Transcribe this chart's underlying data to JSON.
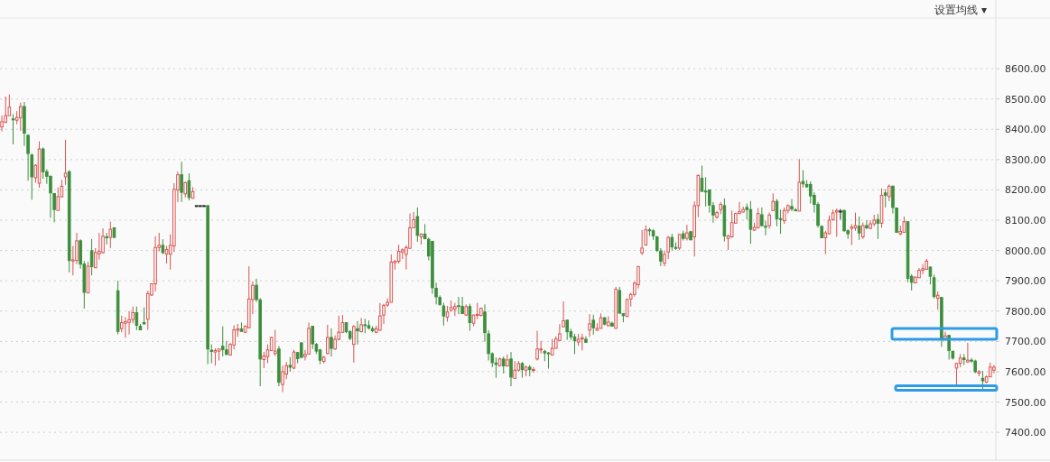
{
  "chart_data": {
    "type": "candlestick",
    "annotations": [
      "设置均线 ▾"
    ],
    "ylim": [
      7308,
      8767
    ],
    "yticks": [
      {
        "value": 7400,
        "label": "7400.00"
      },
      {
        "value": 7500,
        "label": "7500.00"
      },
      {
        "value": 7600,
        "label": "7600.00"
      },
      {
        "value": 7700,
        "label": "7700.00"
      },
      {
        "value": 7800,
        "label": "7800.00"
      },
      {
        "value": 7900,
        "label": "7900.00"
      },
      {
        "value": 8000,
        "label": "8000.00"
      },
      {
        "value": 8100,
        "label": "8100.00"
      },
      {
        "value": 8200,
        "label": "8200.00"
      },
      {
        "value": 8300,
        "label": "8300.00"
      },
      {
        "value": 8400,
        "label": "8400.00"
      },
      {
        "value": 8500,
        "label": "8500.00"
      },
      {
        "value": 8600,
        "label": "8600.00"
      }
    ],
    "grid": "y",
    "categories": [
      null,
      null,
      null,
      null,
      null,
      null,
      null,
      null,
      null,
      null,
      null,
      null,
      null,
      null,
      null,
      null,
      null,
      null,
      null,
      null,
      null,
      null,
      null,
      null,
      null,
      null,
      null,
      null,
      null,
      null,
      null,
      null,
      null,
      null,
      null,
      null,
      null,
      null,
      null,
      null,
      null,
      null,
      null,
      null,
      null,
      null,
      null,
      null,
      null,
      null,
      null,
      null,
      null,
      null,
      null,
      null,
      null,
      null,
      null,
      null,
      null,
      null,
      null,
      null,
      null,
      null,
      null,
      null,
      null,
      null,
      null,
      null,
      null,
      null,
      null,
      null,
      null,
      null,
      null,
      null,
      null,
      null,
      null,
      null,
      null,
      null,
      null,
      null,
      null,
      null,
      null,
      null,
      null,
      null,
      null,
      null,
      null,
      null,
      null,
      null,
      null,
      null,
      null,
      null,
      null,
      null,
      null,
      null,
      null,
      null,
      null,
      null,
      null,
      null,
      null,
      null,
      null,
      null,
      null,
      null,
      null,
      null,
      null,
      null,
      null,
      null,
      null,
      null,
      null,
      null,
      null,
      null,
      null,
      null,
      null,
      null,
      null,
      null,
      null,
      null,
      null,
      null,
      null,
      null,
      null,
      null,
      null,
      null,
      null,
      null,
      null,
      null,
      null,
      null,
      null,
      null,
      null,
      null,
      null,
      null,
      null,
      null,
      null,
      null,
      null,
      null,
      null,
      null,
      null,
      null,
      null,
      null,
      null,
      null,
      null,
      null,
      null,
      null,
      null,
      null,
      null,
      null,
      null,
      null,
      null,
      null,
      null,
      null,
      null,
      null,
      null,
      null,
      null,
      null,
      null,
      null,
      null,
      null,
      null,
      null,
      null,
      null,
      null,
      null,
      null,
      null,
      null,
      null,
      null,
      null,
      null,
      null,
      null,
      null,
      null,
      null,
      null,
      null,
      null,
      null,
      null,
      null,
      null,
      null,
      null,
      null,
      null,
      null,
      null,
      null,
      null,
      null,
      null,
      null,
      null,
      null,
      null,
      null,
      null,
      null,
      null,
      null,
      null,
      null,
      null,
      null,
      null,
      null,
      null,
      null,
      null,
      null,
      null,
      null,
      null,
      null,
      null,
      null,
      null,
      null,
      null,
      null,
      null,
      null,
      null,
      null
    ],
    "ohlc": [
      [
        8408,
        8445,
        8393,
        8425
      ],
      [
        8423,
        8508,
        8420,
        8445
      ],
      [
        8445,
        8515,
        8445,
        8473
      ],
      [
        8434,
        8450,
        8350,
        8432
      ],
      [
        8430,
        8460,
        8417,
        8439
      ],
      [
        8438,
        8488,
        8395,
        8475
      ],
      [
        8475,
        8490,
        8345,
        8387
      ],
      [
        8380,
        8383,
        8230,
        8320
      ],
      [
        8315,
        8320,
        8167,
        8243
      ],
      [
        8240,
        8285,
        8223,
        8281
      ],
      [
        8222,
        8360,
        8207,
        8335
      ],
      [
        8335,
        8340,
        8237,
        8260
      ],
      [
        8260,
        8268,
        8220,
        8245
      ],
      [
        8245,
        8247,
        8108,
        8190
      ],
      [
        8188,
        8188,
        8093,
        8135
      ],
      [
        8132,
        8208,
        8132,
        8178
      ],
      [
        8177,
        8233,
        8175,
        8212
      ],
      [
        8243,
        8365,
        8217,
        8255
      ],
      [
        8260,
        8265,
        7928,
        7967
      ],
      [
        7965,
        8015,
        7918,
        7969
      ],
      [
        7967,
        8058,
        7955,
        8032
      ],
      [
        8032,
        8037,
        7940,
        7955
      ],
      [
        7955,
        7965,
        7808,
        7862
      ],
      [
        7860,
        7963,
        7860,
        7948
      ],
      [
        7999,
        8038,
        7918,
        7947
      ],
      [
        7943,
        8008,
        7943,
        7993
      ],
      [
        7989,
        8058,
        7970,
        7997
      ],
      [
        7993,
        8073,
        7990,
        8047
      ],
      [
        8045,
        8058,
        8020,
        8043
      ],
      [
        8043,
        8095,
        8008,
        8070
      ],
      [
        8075,
        8075,
        8043,
        8043
      ],
      [
        7867,
        7900,
        7723,
        7733
      ],
      [
        7742,
        7785,
        7730,
        7762
      ],
      [
        7760,
        7780,
        7712,
        7765
      ],
      [
        7763,
        7800,
        7723,
        7772
      ],
      [
        7772,
        7815,
        7760,
        7795
      ],
      [
        7795,
        7815,
        7737,
        7753
      ],
      [
        7750,
        7758,
        7737,
        7738
      ],
      [
        7762,
        7812,
        7755,
        7758
      ],
      [
        7773,
        7867,
        7738,
        7858
      ],
      [
        7853,
        7890,
        7850,
        7890
      ],
      [
        7890,
        8047,
        7865,
        8010
      ],
      [
        8010,
        8058,
        7997,
        8017
      ],
      [
        8017,
        8037,
        7988,
        7993
      ],
      [
        7988,
        8015,
        7957,
        8003
      ],
      [
        7988,
        8053,
        7937,
        8017
      ],
      [
        8015,
        8222,
        7995,
        8202
      ],
      [
        8200,
        8260,
        8160,
        8250
      ],
      [
        8250,
        8293,
        8160,
        8192
      ],
      [
        8187,
        8227,
        8175,
        8224
      ],
      [
        8230,
        8254,
        8165,
        8175
      ],
      [
        8172,
        8209,
        8172,
        8194
      ],
      [
        8148,
        8148,
        8148,
        8148
      ],
      [
        8148,
        8148,
        8148,
        8148
      ],
      [
        8148,
        8148,
        8148,
        8148
      ],
      [
        8148,
        8148,
        7625,
        7675
      ],
      [
        7671,
        7690,
        7628,
        7667
      ],
      [
        7665,
        7677,
        7620,
        7670
      ],
      [
        7668,
        7675,
        7637,
        7675
      ],
      [
        7684,
        7750,
        7650,
        7673
      ],
      [
        7672,
        7702,
        7655,
        7657
      ],
      [
        7655,
        7695,
        7655,
        7690
      ],
      [
        7688,
        7753,
        7673,
        7738
      ],
      [
        7737,
        7758,
        7715,
        7741
      ],
      [
        7741,
        7762,
        7733,
        7733
      ],
      [
        7730,
        7753,
        7730,
        7750
      ],
      [
        7745,
        7948,
        7745,
        7840
      ],
      [
        7838,
        7898,
        7790,
        7885
      ],
      [
        7885,
        7907,
        7830,
        7838
      ],
      [
        7837,
        7843,
        7552,
        7642
      ],
      [
        7640,
        7665,
        7612,
        7652
      ],
      [
        7650,
        7690,
        7628,
        7672
      ],
      [
        7670,
        7715,
        7670,
        7713
      ],
      [
        7660,
        7738,
        7652,
        7668
      ],
      [
        7675,
        7685,
        7552,
        7565
      ],
      [
        7558,
        7620,
        7533,
        7600
      ],
      [
        7592,
        7632,
        7575,
        7620
      ],
      [
        7621,
        7648,
        7600,
        7615
      ],
      [
        7612,
        7672,
        7608,
        7665
      ],
      [
        7663,
        7665,
        7628,
        7643
      ],
      [
        7695,
        7698,
        7647,
        7647
      ],
      [
        7650,
        7672,
        7637,
        7657
      ],
      [
        7658,
        7762,
        7658,
        7743
      ],
      [
        7750,
        7750,
        7675,
        7692
      ],
      [
        7690,
        7695,
        7658,
        7668
      ],
      [
        7672,
        7675,
        7625,
        7638
      ],
      [
        7634,
        7652,
        7628,
        7648
      ],
      [
        7660,
        7755,
        7658,
        7713
      ],
      [
        7713,
        7743,
        7650,
        7677
      ],
      [
        7675,
        7720,
        7672,
        7707
      ],
      [
        7707,
        7785,
        7703,
        7730
      ],
      [
        7730,
        7787,
        7729,
        7762
      ],
      [
        7762,
        7762,
        7727,
        7732
      ],
      [
        7732,
        7737,
        7704,
        7710
      ],
      [
        7690,
        7754,
        7630,
        7749
      ],
      [
        7742,
        7767,
        7690,
        7735
      ],
      [
        7732,
        7777,
        7730,
        7755
      ],
      [
        7755,
        7775,
        7727,
        7753
      ],
      [
        7752,
        7769,
        7739,
        7744
      ],
      [
        7742,
        7750,
        7730,
        7735
      ],
      [
        7730,
        7752,
        7727,
        7742
      ],
      [
        7737,
        7827,
        7735,
        7784
      ],
      [
        7787,
        7824,
        7757,
        7819
      ],
      [
        7820,
        7842,
        7814,
        7829
      ],
      [
        7829,
        7987,
        7829,
        7962
      ],
      [
        7960,
        7967,
        7937,
        7965
      ],
      [
        7964,
        8019,
        7957,
        7997
      ],
      [
        7995,
        8007,
        7972,
        8002
      ],
      [
        7987,
        8017,
        7937,
        8010
      ],
      [
        8007,
        8122,
        8007,
        8075
      ],
      [
        8075,
        8127,
        8075,
        8102
      ],
      [
        8112,
        8142,
        8029,
        8050
      ],
      [
        8045,
        8057,
        8020,
        8054
      ],
      [
        8054,
        8087,
        8037,
        8039
      ],
      [
        8037,
        8042,
        7967,
        7982
      ],
      [
        8030,
        8032,
        7857,
        7877
      ],
      [
        7875,
        7894,
        7822,
        7847
      ],
      [
        7845,
        7852,
        7817,
        7822
      ],
      [
        7817,
        7827,
        7752,
        7784
      ],
      [
        7780,
        7817,
        7765,
        7797
      ],
      [
        7802,
        7835,
        7800,
        7812
      ],
      [
        7807,
        7827,
        7784,
        7815
      ],
      [
        7818,
        7847,
        7790,
        7816
      ],
      [
        7815,
        7847,
        7790,
        7792
      ],
      [
        7787,
        7822,
        7784,
        7815
      ],
      [
        7815,
        7824,
        7735,
        7762
      ],
      [
        7760,
        7789,
        7750,
        7787
      ],
      [
        7786,
        7827,
        7774,
        7789
      ],
      [
        7786,
        7812,
        7782,
        7809
      ],
      [
        7797,
        7822,
        7699,
        7729
      ],
      [
        7725,
        7737,
        7637,
        7660
      ],
      [
        7659,
        7664,
        7615,
        7630
      ],
      [
        7629,
        7647,
        7580,
        7624
      ],
      [
        7620,
        7647,
        7617,
        7642
      ],
      [
        7642,
        7650,
        7594,
        7619
      ],
      [
        7619,
        7657,
        7617,
        7639
      ],
      [
        7642,
        7665,
        7552,
        7582
      ],
      [
        7578,
        7635,
        7578,
        7605
      ],
      [
        7605,
        7635,
        7600,
        7627
      ],
      [
        7627,
        7632,
        7580,
        7607
      ],
      [
        7605,
        7620,
        7585,
        7615
      ],
      [
        7615,
        7622,
        7585,
        7607
      ],
      [
        7604,
        7615,
        7597,
        7607
      ],
      [
        7642,
        7735,
        7637,
        7675
      ],
      [
        7672,
        7702,
        7660,
        7675
      ],
      [
        7667,
        7672,
        7635,
        7662
      ],
      [
        7662,
        7665,
        7610,
        7660
      ],
      [
        7655,
        7708,
        7655,
        7677
      ],
      [
        7677,
        7717,
        7677,
        7708
      ],
      [
        7703,
        7757,
        7703,
        7725
      ],
      [
        7748,
        7832,
        7748,
        7768
      ],
      [
        7770,
        7772,
        7705,
        7732
      ],
      [
        7732,
        7742,
        7705,
        7715
      ],
      [
        7715,
        7725,
        7658,
        7702
      ],
      [
        7698,
        7725,
        7685,
        7707
      ],
      [
        7708,
        7725,
        7670,
        7712
      ],
      [
        7707,
        7717,
        7695,
        7697
      ],
      [
        7737,
        7790,
        7715,
        7758
      ],
      [
        7770,
        7788,
        7722,
        7745
      ],
      [
        7737,
        7760,
        7735,
        7743
      ],
      [
        7743,
        7792,
        7743,
        7778
      ],
      [
        7778,
        7780,
        7753,
        7757
      ],
      [
        7752,
        7783,
        7750,
        7764
      ],
      [
        7760,
        7765,
        7750,
        7750
      ],
      [
        7743,
        7880,
        7743,
        7872
      ],
      [
        7868,
        7880,
        7793,
        7793
      ],
      [
        7792,
        7792,
        7763,
        7785
      ],
      [
        7782,
        7842,
        7782,
        7838
      ],
      [
        7840,
        7860,
        7815,
        7855
      ],
      [
        7855,
        7898,
        7848,
        7892
      ],
      [
        7887,
        7947,
        7875,
        7947
      ],
      [
        7992,
        8068,
        7985,
        8008
      ],
      [
        8018,
        8083,
        8018,
        8068
      ],
      [
        8068,
        8075,
        8048,
        8065
      ],
      [
        8065,
        8070,
        8035,
        8048
      ],
      [
        8045,
        8048,
        7995,
        8000
      ],
      [
        7998,
        8008,
        7948,
        7965
      ],
      [
        7958,
        8000,
        7948,
        7987
      ],
      [
        7995,
        8048,
        7972,
        8043
      ],
      [
        8043,
        8055,
        8000,
        8012
      ],
      [
        8010,
        8027,
        8002,
        8008
      ],
      [
        8008,
        8055,
        8002,
        8053
      ],
      [
        8055,
        8065,
        8033,
        8040
      ],
      [
        8040,
        8085,
        8033,
        8058
      ],
      [
        8062,
        8065,
        8035,
        8035
      ],
      [
        8045,
        8162,
        7980,
        8148
      ],
      [
        8148,
        8250,
        8110,
        8248
      ],
      [
        8238,
        8280,
        8195,
        8195
      ],
      [
        8196,
        8242,
        8145,
        8194
      ],
      [
        8200,
        8200,
        8125,
        8150
      ],
      [
        8148,
        8160,
        8092,
        8117
      ],
      [
        8110,
        8130,
        8105,
        8125
      ],
      [
        8135,
        8160,
        8120,
        8152
      ],
      [
        8148,
        8172,
        8030,
        8048
      ],
      [
        8040,
        8052,
        8002,
        8048
      ],
      [
        8045,
        8132,
        8042,
        8092
      ],
      [
        8090,
        8125,
        8090,
        8122
      ],
      [
        8122,
        8160,
        8120,
        8128
      ],
      [
        8127,
        8145,
        8125,
        8135
      ],
      [
        8142,
        8155,
        8102,
        8135
      ],
      [
        8135,
        8163,
        8022,
        8070
      ],
      [
        8067,
        8092,
        8065,
        8077
      ],
      [
        8075,
        8140,
        8072,
        8122
      ],
      [
        8118,
        8142,
        8080,
        8082
      ],
      [
        8080,
        8098,
        8050,
        8078
      ],
      [
        8082,
        8125,
        8072,
        8117
      ],
      [
        8132,
        8188,
        8130,
        8162
      ],
      [
        8162,
        8170,
        8080,
        8105
      ],
      [
        8105,
        8135,
        8055,
        8103
      ],
      [
        8098,
        8142,
        8088,
        8132
      ],
      [
        8132,
        8152,
        8122,
        8148
      ],
      [
        8145,
        8170,
        8130,
        8137
      ],
      [
        8134,
        8140,
        8132,
        8132
      ],
      [
        8130,
        8302,
        8130,
        8225
      ],
      [
        8228,
        8265,
        8208,
        8220
      ],
      [
        8218,
        8232,
        8208,
        8210
      ],
      [
        8218,
        8228,
        8155,
        8180
      ],
      [
        8182,
        8192,
        8125,
        8152
      ],
      [
        8152,
        8160,
        8075,
        8083
      ],
      [
        8080,
        8080,
        8042,
        8042
      ],
      [
        8042,
        8065,
        7988,
        8058
      ],
      [
        8055,
        8115,
        8055,
        8100
      ],
      [
        8102,
        8135,
        8098,
        8124
      ],
      [
        8127,
        8138,
        8045,
        8132
      ],
      [
        8130,
        8137,
        8102,
        8130
      ],
      [
        8132,
        8135,
        8062,
        8065
      ],
      [
        8065,
        8070,
        8038,
        8055
      ],
      [
        8073,
        8087,
        8018,
        8077
      ],
      [
        8075,
        8125,
        8065,
        8082
      ],
      [
        8080,
        8112,
        8035,
        8058
      ],
      [
        8045,
        8092,
        8038,
        8082
      ],
      [
        8082,
        8100,
        8070,
        8075
      ],
      [
        8073,
        8100,
        8070,
        8088
      ],
      [
        8088,
        8118,
        8080,
        8100
      ],
      [
        8102,
        8120,
        8038,
        8090
      ],
      [
        8090,
        8205,
        8075,
        8182
      ],
      [
        8190,
        8202,
        8142,
        8182
      ],
      [
        8178,
        8218,
        8163,
        8212
      ],
      [
        8212,
        8215,
        8122,
        8142
      ],
      [
        8140,
        8142,
        8060,
        8060
      ],
      [
        8055,
        8082,
        8050,
        8063
      ],
      [
        8060,
        8112,
        8060,
        8095
      ],
      [
        8095,
        8095,
        7895,
        7908
      ],
      [
        7915,
        7922,
        7868,
        7895
      ],
      [
        7893,
        7915,
        7893,
        7912
      ],
      [
        7910,
        7942,
        7910,
        7935
      ],
      [
        7935,
        7955,
        7922,
        7940
      ],
      [
        7938,
        7972,
        7938,
        7965
      ],
      [
        7945,
        7948,
        7888,
        7915
      ],
      [
        7910,
        7920,
        7842,
        7848
      ],
      [
        7842,
        7865,
        7805,
        7852
      ],
      [
        7845,
        7845,
        7682,
        7705
      ],
      [
        7705,
        7732,
        7705,
        7718
      ],
      [
        7720,
        7720,
        7640,
        7670
      ],
      [
        7667,
        7670,
        7640,
        7645
      ],
      [
        7612,
        7630,
        7558,
        7627
      ],
      [
        7628,
        7658,
        7615,
        7645
      ],
      [
        7645,
        7658,
        7622,
        7640
      ],
      [
        7632,
        7695,
        7630,
        7638
      ],
      [
        7638,
        7645,
        7630,
        7636
      ],
      [
        7635,
        7640,
        7595,
        7600
      ],
      [
        7595,
        7605,
        7585,
        7600
      ],
      [
        7578,
        7602,
        7538,
        7570
      ],
      [
        7565,
        7588,
        7563,
        7583
      ],
      [
        7583,
        7630,
        7583,
        7615
      ],
      [
        7605,
        7622,
        7595,
        7615
      ]
    ]
  }
}
